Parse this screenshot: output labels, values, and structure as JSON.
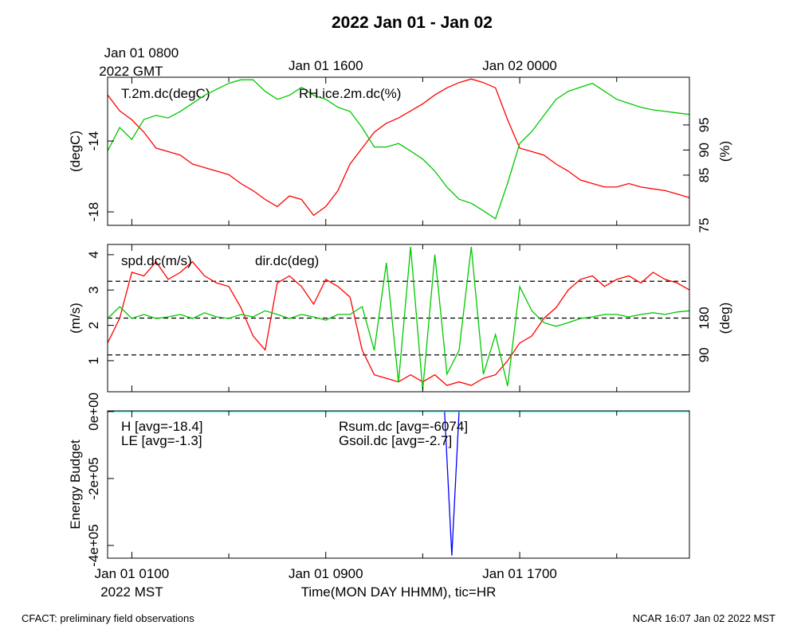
{
  "title": "2022 Jan 01 - Jan 02",
  "footer_left": "CFACT: preliminary field observations",
  "footer_right": "NCAR 16:07 Jan 02 2022 MST",
  "x_axis": {
    "xlim": [
      0,
      24
    ],
    "xticks": [
      {
        "value": 1,
        "label": "Jan 01 0100"
      },
      {
        "value": 9,
        "label": "Jan 01 0900"
      },
      {
        "value": 17,
        "label": "Jan 01 1700"
      }
    ],
    "minor_ticks": [
      5,
      13,
      21
    ],
    "top_ticks": [
      {
        "value": 1,
        "label": "Jan 01 0800"
      },
      {
        "value": 9,
        "label": "Jan 01 1600"
      },
      {
        "value": 17,
        "label": "Jan 02 0000"
      }
    ],
    "label": "Time(MON DAY HHMM), tic=HR",
    "timezone_label": "2022 MST",
    "top_timezone_label": "2022 GMT"
  },
  "chart_data": [
    {
      "type": "line",
      "x": [
        0,
        0.5,
        1,
        1.5,
        2,
        2.5,
        3,
        3.5,
        4,
        4.5,
        5,
        5.5,
        6,
        6.5,
        7,
        7.5,
        8,
        8.5,
        9,
        9.5,
        10,
        10.5,
        11,
        11.5,
        12,
        12.5,
        13,
        13.5,
        14,
        14.5,
        15,
        15.5,
        16,
        16.5,
        17,
        17.5,
        18,
        18.5,
        19,
        19.5,
        20,
        20.5,
        21,
        21.5,
        22,
        22.5,
        23,
        23.5,
        24
      ],
      "ylabel": "(degC)",
      "ylim": [
        -18.76,
        -10.4
      ],
      "yticks": [
        -18,
        -14
      ],
      "y2label": "(%)",
      "y2lim": [
        75,
        104.5
      ],
      "y2ticks": [
        75,
        85,
        90,
        95
      ],
      "series": [
        {
          "name": "T.2m.dc(degC)",
          "color": "#ff0000",
          "axis": "y",
          "values": [
            -11.4,
            -12.3,
            -12.8,
            -13.5,
            -14.4,
            -14.6,
            -14.8,
            -15.3,
            -15.5,
            -15.7,
            -15.9,
            -16.4,
            -16.8,
            -17.3,
            -17.7,
            -17.1,
            -17.3,
            -18.2,
            -17.7,
            -16.8,
            -15.3,
            -14.4,
            -13.5,
            -13.0,
            -12.7,
            -12.3,
            -11.9,
            -11.4,
            -11.0,
            -10.7,
            -10.5,
            -10.7,
            -11.0,
            -12.8,
            -14.4,
            -14.6,
            -14.8,
            -15.3,
            -15.7,
            -16.2,
            -16.4,
            -16.6,
            -16.6,
            -16.4,
            -16.6,
            -16.7,
            -16.8,
            -17.0,
            -17.2
          ]
        },
        {
          "name": "RH.ice.2m.dc(%)",
          "color": "#00c800",
          "axis": "y2",
          "values": [
            89.8,
            94.5,
            92.1,
            96.1,
            96.9,
            96.4,
            97.7,
            99.3,
            100.9,
            102.1,
            103.3,
            104.0,
            104.0,
            101.7,
            100.1,
            100.9,
            102.5,
            100.9,
            100.1,
            98.5,
            97.7,
            94.5,
            90.6,
            90.6,
            91.3,
            89.8,
            88.2,
            85.8,
            82.6,
            80.2,
            79.4,
            77.9,
            76.3,
            83.4,
            91.3,
            93.7,
            96.9,
            100.1,
            101.7,
            102.5,
            103.3,
            101.7,
            100.1,
            99.3,
            98.5,
            98.0,
            97.7,
            97.4,
            97.1
          ]
        }
      ]
    },
    {
      "type": "line",
      "x": [
        0,
        0.5,
        1,
        1.5,
        2,
        2.5,
        3,
        3.5,
        4,
        4.5,
        5,
        5.5,
        6,
        6.5,
        7,
        7.5,
        8,
        8.5,
        9,
        9.5,
        10,
        10.5,
        11,
        11.5,
        12,
        12.5,
        13,
        13.5,
        14,
        14.5,
        15,
        15.5,
        16,
        16.5,
        17,
        17.5,
        18,
        18.5,
        19,
        19.5,
        20,
        20.5,
        21,
        21.5,
        22,
        22.5,
        23,
        23.5,
        24
      ],
      "ylabel": "(m/s)",
      "ylim": [
        0.12,
        4.29
      ],
      "yticks": [
        1,
        2,
        3,
        4
      ],
      "y2label": "(deg)",
      "y2lim": [
        0,
        360
      ],
      "y2ticks": [
        90,
        180
      ],
      "y2grid": [
        90,
        180,
        270
      ],
      "series": [
        {
          "name": "spd.dc(m/s)",
          "color": "#ff0000",
          "axis": "y",
          "values": [
            1.5,
            2.2,
            3.5,
            3.4,
            3.8,
            3.3,
            3.5,
            3.8,
            3.4,
            3.2,
            3.1,
            2.5,
            1.7,
            1.3,
            3.2,
            3.4,
            3.1,
            2.6,
            3.3,
            3.1,
            2.8,
            1.3,
            0.6,
            0.5,
            0.4,
            0.6,
            0.4,
            0.6,
            0.3,
            0.4,
            0.3,
            0.5,
            0.6,
            1.0,
            1.5,
            1.7,
            2.2,
            2.5,
            3.0,
            3.3,
            3.4,
            3.1,
            3.3,
            3.4,
            3.2,
            3.5,
            3.3,
            3.2,
            3.0
          ]
        },
        {
          "name": "dir.dc(deg)",
          "color": "#00c800",
          "axis": "y2",
          "values": [
            179,
            208,
            179,
            189,
            179,
            183,
            189,
            179,
            193,
            183,
            179,
            189,
            183,
            198,
            189,
            179,
            189,
            183,
            175,
            189,
            189,
            208,
            101,
            315,
            23,
            354,
            4,
            335,
            43,
            101,
            354,
            43,
            140,
            14,
            257,
            198,
            169,
            160,
            169,
            179,
            183,
            189,
            189,
            183,
            189,
            193,
            189,
            195,
            198
          ]
        }
      ]
    },
    {
      "type": "line",
      "x": [
        0,
        2,
        4,
        6,
        8,
        10,
        12,
        13.9,
        14.2,
        14.5,
        16,
        18,
        20,
        22,
        24
      ],
      "ylabel": "Energy Budget",
      "ylim": [
        -438000,
        2000
      ],
      "yticks": [
        {
          "value": 0,
          "label": "0e+00"
        },
        {
          "value": -200000,
          "label": "-2e+05"
        },
        {
          "value": -400000,
          "label": "-4e+05"
        }
      ],
      "series": [
        {
          "name": "H [avg=-18.4]",
          "color": "#ff0000",
          "axis": "y",
          "values": [
            -20,
            -15,
            -18,
            -22,
            -19,
            -17,
            -20,
            -18,
            -16,
            -19,
            -20,
            -18,
            -17,
            -19,
            -20
          ]
        },
        {
          "name": "LE [avg=-1.3]",
          "color": "#00c800",
          "axis": "y",
          "values": [
            -1,
            -1.5,
            -1,
            -1.2,
            -1.3,
            -1.4,
            -1.1,
            -1.3,
            -1.2,
            -1.5,
            -1.3,
            -1.2,
            -1.4,
            -1.3,
            -1.2
          ]
        },
        {
          "name": "Rsum.dc [avg=-6074]",
          "color": "#0000ff",
          "axis": "y",
          "values": [
            -40,
            -60,
            -50,
            -70,
            -80,
            -90,
            -60,
            -50,
            -430000,
            -60,
            -70,
            -80,
            -60,
            -50,
            -40
          ]
        },
        {
          "name": "Gsoil.dc [avg=-2.7]",
          "color": "#00ffff",
          "axis": "y",
          "values": [
            -2.5,
            -2.6,
            -2.8,
            -2.7,
            -2.9,
            -2.6,
            -2.7,
            -2.8,
            -2.7,
            -2.6,
            -2.8,
            -2.7,
            -2.6,
            -2.8,
            -2.7
          ]
        }
      ]
    }
  ]
}
